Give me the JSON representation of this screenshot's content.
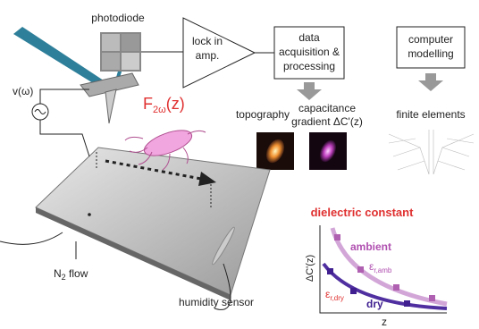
{
  "labels": {
    "photodiode": "photodiode",
    "lock_in": [
      "lock in",
      "amp."
    ],
    "data_acquisition": [
      "data",
      "acquisition &",
      "processing"
    ],
    "computer_modelling": [
      "computer",
      "modelling"
    ],
    "topography": "topography",
    "capacitance_gradient": [
      "capacitance",
      "gradient ΔC'(z)"
    ],
    "finite_elements": "finite elements",
    "force": {
      "main": "F",
      "sub": "2ω",
      "tail": "(z)"
    },
    "voltage": "v(ω)",
    "n2_flow": {
      "main": "N",
      "sub": "2",
      "tail": " flow"
    },
    "humidity_sensor": "humidity sensor"
  },
  "inset": {
    "title": "dielectric constant",
    "ambient": "ambient",
    "eps_amb": {
      "main": "ε",
      "sub": "r,amb"
    },
    "eps_dry": {
      "main": "ε",
      "sub": "r,dry"
    },
    "dry": "dry",
    "y_label": "ΔC'(z)",
    "x_label": "z"
  }
}
